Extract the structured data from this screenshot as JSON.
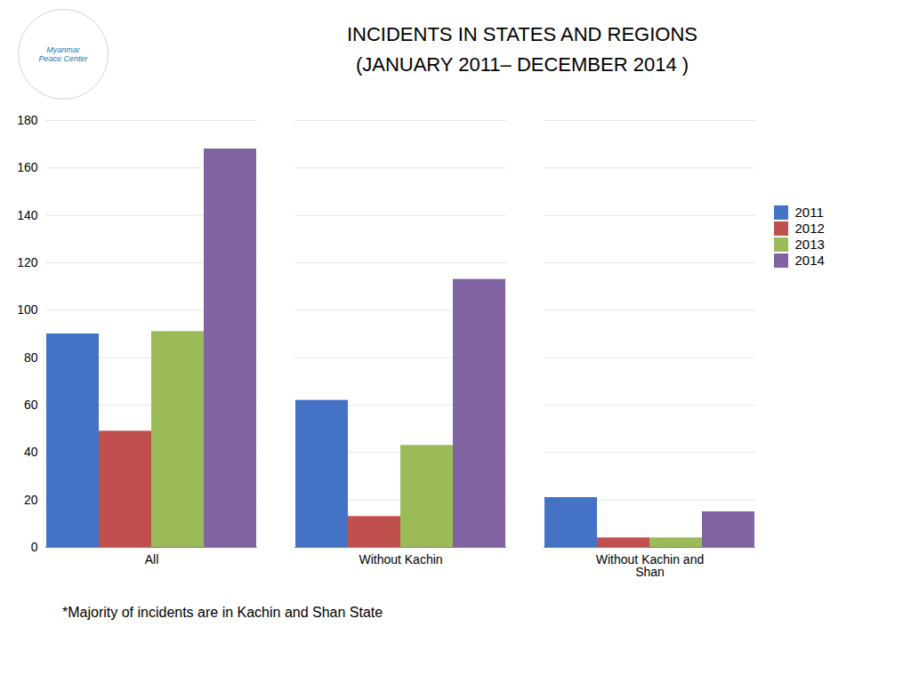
{
  "chart_data": {
    "type": "bar",
    "title": "INCIDENTS IN STATES AND REGIONS",
    "subtitle": "(JANUARY 2011– DECEMBER 2014 )",
    "caption": "*Majority of incidents are in Kachin and Shan State",
    "annotations": [
      "Myanmar\nPeace Center"
    ],
    "categories": [
      "All",
      "Without Kachin",
      "Without Kachin and\nShan"
    ],
    "series": [
      {
        "name": "2011",
        "color": "#4472C4",
        "values": [
          90,
          62,
          21
        ]
      },
      {
        "name": "2012",
        "color": "#C0504D",
        "values": [
          49,
          13,
          4
        ]
      },
      {
        "name": "2013",
        "color": "#9BBB59",
        "values": [
          91,
          43,
          4
        ]
      },
      {
        "name": "2014",
        "color": "#8064A2",
        "values": [
          168,
          113,
          15
        ]
      }
    ],
    "ylim": [
      0,
      180
    ],
    "yticks": [
      0,
      20,
      40,
      60,
      80,
      100,
      120,
      140,
      160,
      180
    ],
    "grid": true,
    "legend": "upper right"
  }
}
